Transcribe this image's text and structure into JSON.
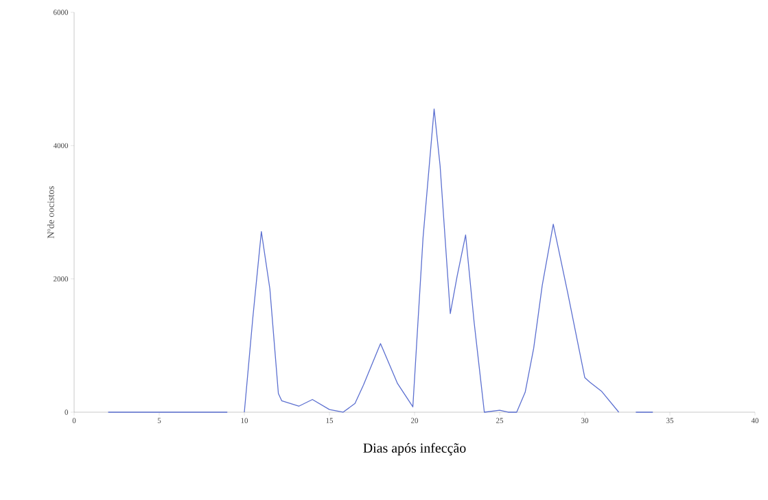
{
  "chart_data": {
    "type": "line",
    "xlabel": "Dias após infecção",
    "ylabel": "Nºde oocistos",
    "series": [
      {
        "color": "#5b6fd0",
        "x": [
          2,
          5,
          9,
          9.5,
          10,
          10.5,
          11,
          11.5,
          12,
          12.2,
          13.2,
          14,
          15,
          15.8,
          16.5,
          17,
          18,
          19,
          19.9,
          20.5,
          21.15,
          21.5,
          22.1,
          22.5,
          23,
          23.5,
          24.1,
          25,
          25.5,
          26,
          26.5,
          27,
          27.5,
          28.15,
          29,
          30,
          30.3,
          31,
          32,
          32.5,
          33,
          34
        ],
        "values": [
          0,
          0,
          0,
          null,
          0,
          1420,
          2710,
          1850,
          280,
          170,
          90,
          190,
          40,
          0,
          130,
          410,
          1030,
          430,
          80,
          2620,
          4550,
          3700,
          1480,
          2040,
          2660,
          1350,
          0,
          30,
          0,
          0,
          300,
          960,
          1900,
          2820,
          1790,
          520,
          450,
          310,
          0,
          null,
          0,
          0
        ]
      }
    ],
    "xlim": [
      0,
      40
    ],
    "ylim": [
      0,
      6000
    ],
    "xticks": [
      0,
      5,
      10,
      15,
      20,
      25,
      30,
      35,
      40
    ],
    "yticks": [
      0,
      2000,
      4000,
      6000
    ],
    "marker": "none",
    "line_style": "solid"
  }
}
